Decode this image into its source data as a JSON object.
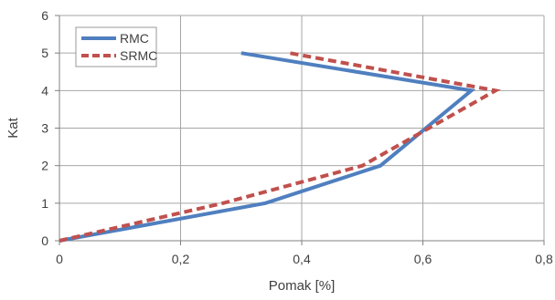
{
  "chart_data": {
    "type": "line",
    "title": "",
    "xlabel": "Pomak [%]",
    "ylabel": "Kat",
    "xlim": [
      0,
      0.8
    ],
    "ylim": [
      0,
      6
    ],
    "x_ticks": [
      "0",
      "0,2",
      "0,4",
      "0,6",
      "0,8"
    ],
    "y_ticks": [
      "0",
      "1",
      "2",
      "3",
      "4",
      "5",
      "6"
    ],
    "grid": true,
    "legend_position": "top-left",
    "series": [
      {
        "name": "RMC",
        "color": "#4f7fbf",
        "dash": "solid",
        "points": [
          {
            "x": 0,
            "y": 0
          },
          {
            "x": 0.34,
            "y": 1
          },
          {
            "x": 0.53,
            "y": 2
          },
          {
            "x": 0.68,
            "y": 4
          },
          {
            "x": 0.3,
            "y": 5
          }
        ]
      },
      {
        "name": "SRMC",
        "color": "#c0504d",
        "dash": "dashed",
        "points": [
          {
            "x": 0,
            "y": 0
          },
          {
            "x": 0.27,
            "y": 1
          },
          {
            "x": 0.5,
            "y": 2
          },
          {
            "x": 0.72,
            "y": 4
          },
          {
            "x": 0.38,
            "y": 5
          }
        ]
      }
    ]
  }
}
